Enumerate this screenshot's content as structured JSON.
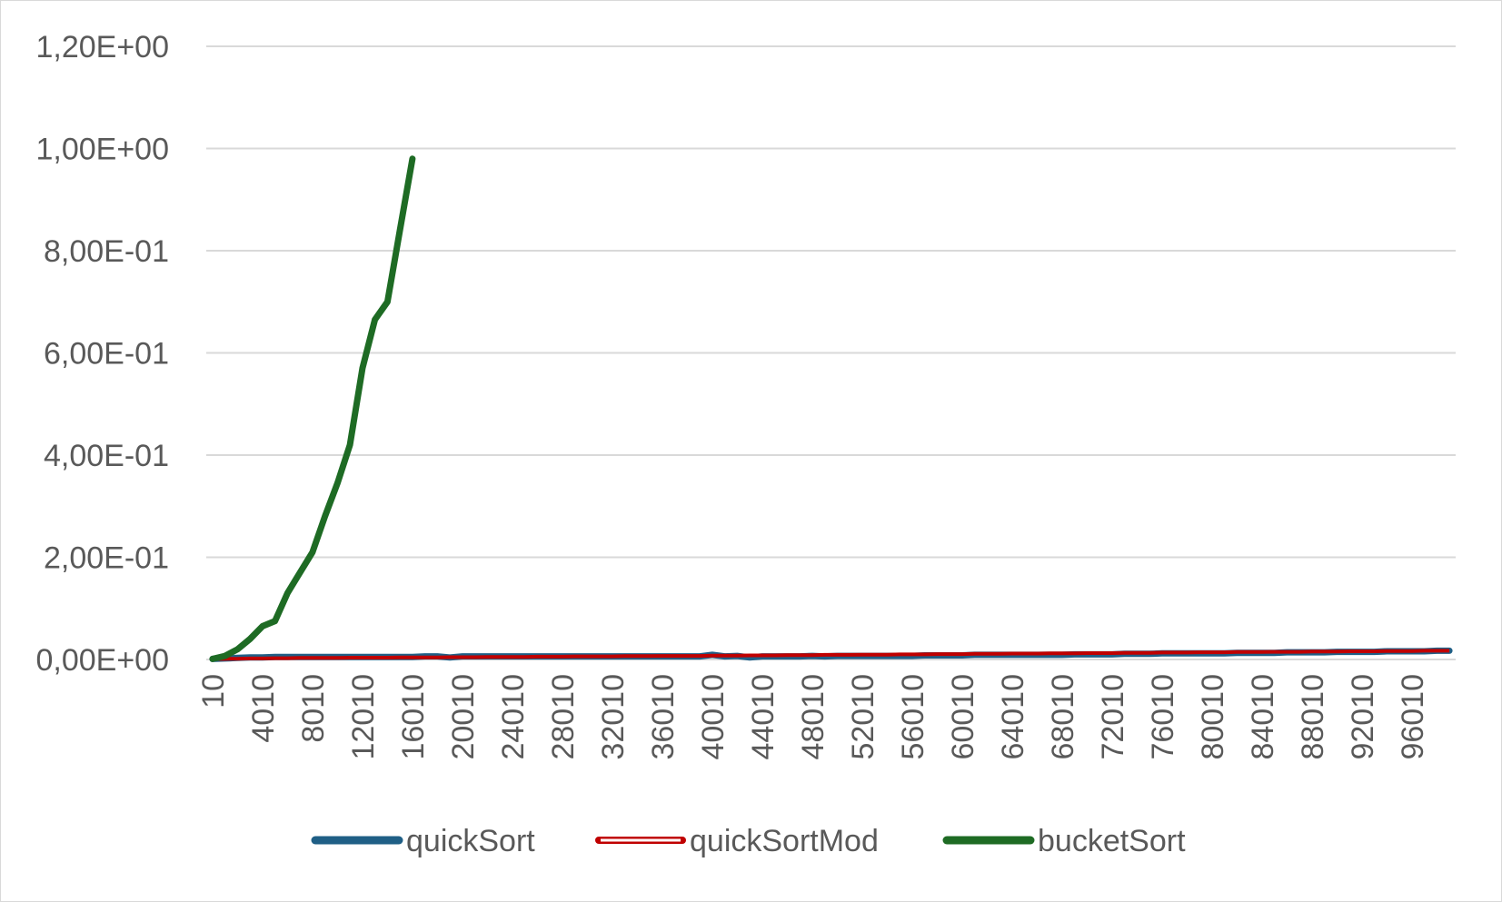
{
  "chart_data": {
    "type": "line",
    "title": "",
    "xlabel": "",
    "ylabel": "",
    "ylim": [
      0,
      1.2
    ],
    "yticks": [
      {
        "value": 0,
        "label": "0,00E+00"
      },
      {
        "value": 0.2,
        "label": "2,00E-01"
      },
      {
        "value": 0.4,
        "label": "4,00E-01"
      },
      {
        "value": 0.6,
        "label": "6,00E-01"
      },
      {
        "value": 0.8,
        "label": "8,00E-01"
      },
      {
        "value": 1.0,
        "label": "1,00E+00"
      },
      {
        "value": 1.2,
        "label": "1,20E+00"
      }
    ],
    "x_tick_labels": [
      "10",
      "4010",
      "8010",
      "12010",
      "16010",
      "20010",
      "24010",
      "28010",
      "32010",
      "36010",
      "40010",
      "44010",
      "48010",
      "52010",
      "56010",
      "60010",
      "64010",
      "68010",
      "72010",
      "76010",
      "80010",
      "84010",
      "88010",
      "92010",
      "96010"
    ],
    "x_first": 10,
    "x_step": 1000,
    "x_count": 100,
    "grid": true,
    "legend_position": "bottom",
    "series": [
      {
        "name": "quickSort",
        "color": "#1f5f86",
        "values": [
          0.001,
          0.002,
          0.003,
          0.004,
          0.004,
          0.005,
          0.005,
          0.005,
          0.005,
          0.005,
          0.005,
          0.005,
          0.005,
          0.005,
          0.005,
          0.005,
          0.005,
          0.006,
          0.006,
          0.004,
          0.006,
          0.006,
          0.006,
          0.006,
          0.006,
          0.006,
          0.006,
          0.006,
          0.006,
          0.006,
          0.006,
          0.006,
          0.006,
          0.006,
          0.006,
          0.006,
          0.006,
          0.006,
          0.006,
          0.006,
          0.009,
          0.006,
          0.007,
          0.004,
          0.006,
          0.006,
          0.006,
          0.006,
          0.007,
          0.006,
          0.007,
          0.007,
          0.007,
          0.007,
          0.007,
          0.007,
          0.007,
          0.008,
          0.008,
          0.008,
          0.008,
          0.009,
          0.009,
          0.009,
          0.009,
          0.009,
          0.009,
          0.009,
          0.009,
          0.01,
          0.01,
          0.01,
          0.01,
          0.011,
          0.011,
          0.011,
          0.012,
          0.012,
          0.012,
          0.012,
          0.012,
          0.012,
          0.013,
          0.013,
          0.013,
          0.013,
          0.014,
          0.014,
          0.014,
          0.014,
          0.015,
          0.015,
          0.015,
          0.015,
          0.016,
          0.016,
          0.016,
          0.016,
          0.017,
          0.017
        ]
      },
      {
        "name": "quickSortMod",
        "color": "#c00000",
        "values": [
          0.0005,
          0.001,
          0.0015,
          0.002,
          0.002,
          0.0025,
          0.0025,
          0.003,
          0.003,
          0.003,
          0.003,
          0.0035,
          0.0035,
          0.0035,
          0.0035,
          0.004,
          0.004,
          0.004,
          0.004,
          0.0045,
          0.0045,
          0.0045,
          0.005,
          0.005,
          0.005,
          0.005,
          0.0055,
          0.0055,
          0.0055,
          0.006,
          0.006,
          0.006,
          0.006,
          0.0065,
          0.0065,
          0.0065,
          0.007,
          0.007,
          0.007,
          0.007,
          0.0075,
          0.0075,
          0.0075,
          0.008,
          0.008,
          0.008,
          0.0085,
          0.0085,
          0.0085,
          0.009,
          0.009,
          0.009,
          0.0095,
          0.0095,
          0.0095,
          0.01,
          0.01,
          0.01,
          0.0105,
          0.0105,
          0.0105,
          0.011,
          0.011,
          0.011,
          0.0115,
          0.0115,
          0.0115,
          0.012,
          0.012,
          0.012,
          0.0125,
          0.0125,
          0.0125,
          0.013,
          0.013,
          0.013,
          0.0135,
          0.0135,
          0.0135,
          0.014,
          0.014,
          0.014,
          0.0145,
          0.0145,
          0.0145,
          0.015,
          0.015,
          0.015,
          0.0155,
          0.0155,
          0.0155,
          0.016,
          0.016,
          0.016,
          0.0165,
          0.0165,
          0.0165,
          0.017,
          0.017,
          0.017
        ]
      },
      {
        "name": "bucketSort",
        "color": "#1e6b24",
        "values": [
          0.001,
          0.007,
          0.02,
          0.04,
          0.065,
          0.075,
          0.13,
          0.17,
          0.21,
          0.28,
          0.345,
          0.42,
          0.57,
          0.665,
          0.7,
          0.84,
          0.98
        ]
      }
    ]
  }
}
